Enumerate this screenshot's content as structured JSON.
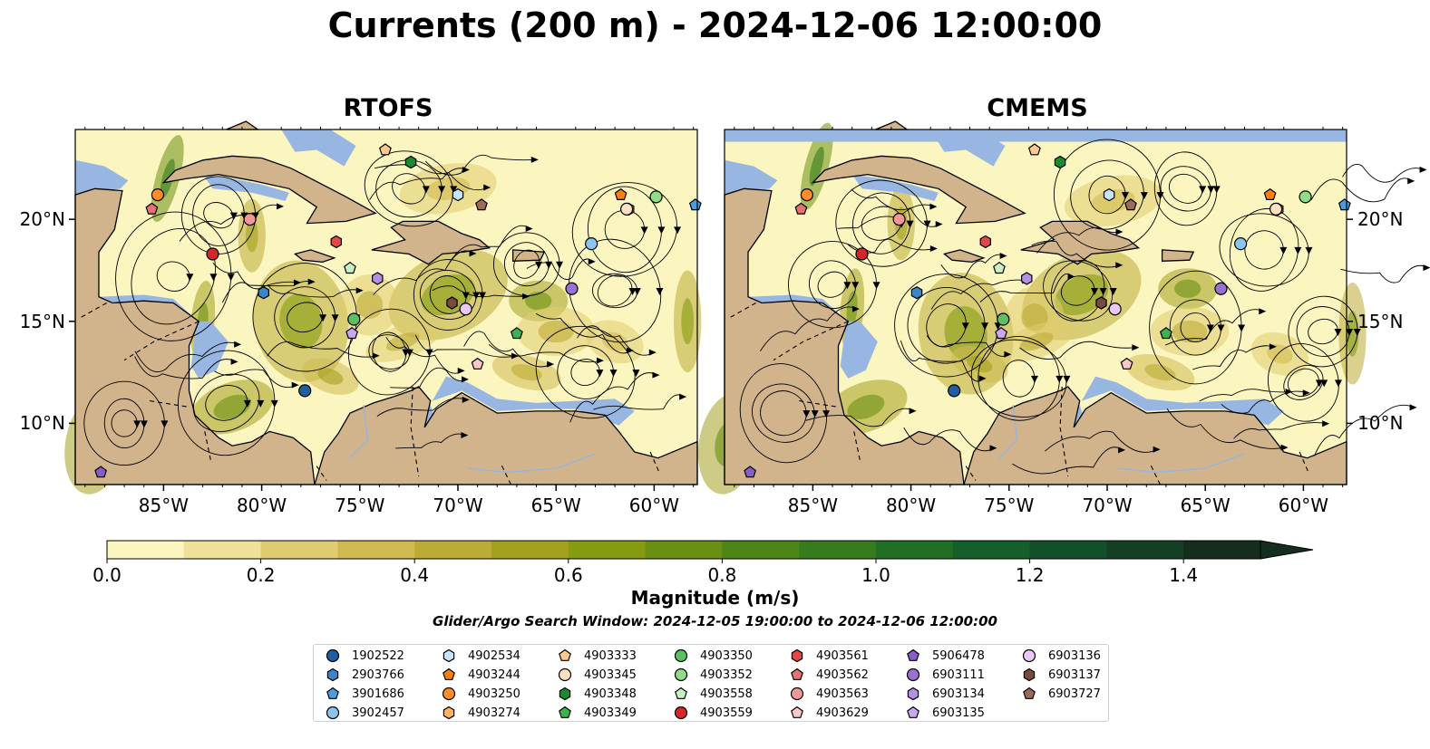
{
  "title": "Currents (200 m) - 2024-12-06 12:00:00",
  "panels": [
    {
      "title": "RTOFS",
      "variant": 0
    },
    {
      "title": "CMEMS",
      "variant": 1
    }
  ],
  "map": {
    "lon_range": [
      -89.5,
      -57.8
    ],
    "lat_range": [
      7.0,
      24.4
    ],
    "lon_ticks": [
      "85°W",
      "80°W",
      "75°W",
      "70°W",
      "65°W",
      "60°W"
    ],
    "lon_tick_values": [
      -85,
      -80,
      -75,
      -70,
      -65,
      -60
    ],
    "lat_ticks": [
      "20°N",
      "15°N",
      "10°N"
    ],
    "lat_tick_values": [
      20,
      15,
      10
    ],
    "colors": {
      "ocean": "#fbf5c0",
      "land": "#d2b48c",
      "outside_domain": "#97b6e1",
      "streamline": "#000000"
    }
  },
  "colorbar": {
    "label": "Magnitude (m/s)",
    "range": [
      0.0,
      1.5
    ],
    "extend": "max",
    "ticks": [
      "0.0",
      "0.2",
      "0.4",
      "0.6",
      "0.8",
      "1.0",
      "1.2",
      "1.4"
    ],
    "tick_values": [
      0.0,
      0.2,
      0.4,
      0.6,
      0.8,
      1.0,
      1.2,
      1.4
    ],
    "colors": [
      "#fbf5c0",
      "#efe09a",
      "#e0cc70",
      "#d0ba50",
      "#bcab35",
      "#a4a020",
      "#869b10",
      "#6a9012",
      "#4e8616",
      "#367c1c",
      "#226e24",
      "#165e2a",
      "#12502a",
      "#143f24",
      "#142d1c"
    ]
  },
  "search_window": "Glider/Argo Search Window: 2024-12-05 19:00:00 to 2024-12-06 12:00:00",
  "floats": [
    {
      "id": "1902522",
      "color": "#1f5fa0",
      "marker": "circle",
      "lon": -77.8,
      "lat": 11.6,
      "lon2": -77.8,
      "lat2": 11.6
    },
    {
      "id": "2903766",
      "color": "#3a86c8",
      "marker": "hexagon",
      "lon": -79.9,
      "lat": 16.4,
      "lon2": -79.7,
      "lat2": 16.4
    },
    {
      "id": "3901686",
      "color": "#4a9ee0",
      "marker": "pentagon",
      "lon": -57.9,
      "lat": 20.7,
      "lon2": -57.9,
      "lat2": 20.7
    },
    {
      "id": "3902457",
      "color": "#8cc4f0",
      "marker": "circle",
      "lon": -63.2,
      "lat": 18.8,
      "lon2": -63.2,
      "lat2": 18.8
    },
    {
      "id": "4902534",
      "color": "#c8e4fa",
      "marker": "hexagon",
      "lon": -70.0,
      "lat": 21.2,
      "lon2": -69.9,
      "lat2": 21.2
    },
    {
      "id": "4903244",
      "color": "#ff7f0e",
      "marker": "pentagon",
      "lon": -61.7,
      "lat": 21.2,
      "lon2": -61.7,
      "lat2": 21.2
    },
    {
      "id": "4903250",
      "color": "#ff8c2a",
      "marker": "circle",
      "lon": -85.3,
      "lat": 21.2,
      "lon2": -85.3,
      "lat2": 21.2
    },
    {
      "id": "4903274",
      "color": "#ffb060",
      "marker": "hexagon",
      "lon": -61.3,
      "lat": 20.5,
      "lon2": -61.3,
      "lat2": 20.5
    },
    {
      "id": "4903333",
      "color": "#ffc890",
      "marker": "pentagon",
      "lon": -73.7,
      "lat": 23.4,
      "lon2": -73.7,
      "lat2": 23.4
    },
    {
      "id": "4903345",
      "color": "#ffe0c0",
      "marker": "circle",
      "lon": -61.4,
      "lat": 20.5,
      "lon2": -61.4,
      "lat2": 20.5
    },
    {
      "id": "4903348",
      "color": "#1a8a2e",
      "marker": "hexagon",
      "lon": -72.4,
      "lat": 22.8,
      "lon2": -72.4,
      "lat2": 22.8
    },
    {
      "id": "4903349",
      "color": "#3cb44b",
      "marker": "pentagon",
      "lon": -67.0,
      "lat": 14.4,
      "lon2": -67.0,
      "lat2": 14.4
    },
    {
      "id": "4903350",
      "color": "#5cc060",
      "marker": "circle",
      "lon": -75.3,
      "lat": 15.1,
      "lon2": -75.3,
      "lat2": 15.1
    },
    {
      "id": "4903352",
      "color": "#90dc88",
      "marker": "circle",
      "lon": -59.9,
      "lat": 21.1,
      "lon2": -59.9,
      "lat2": 21.1
    },
    {
      "id": "4903558",
      "color": "#c8f0c0",
      "marker": "pentagon",
      "lon": -75.5,
      "lat": 17.6,
      "lon2": -75.5,
      "lat2": 17.6
    },
    {
      "id": "4903559",
      "color": "#d62728",
      "marker": "circle",
      "lon": -82.5,
      "lat": 18.3,
      "lon2": -82.5,
      "lat2": 18.3
    },
    {
      "id": "4903561",
      "color": "#e04848",
      "marker": "hexagon",
      "lon": -76.2,
      "lat": 18.9,
      "lon2": -76.2,
      "lat2": 18.9
    },
    {
      "id": "4903562",
      "color": "#e87070",
      "marker": "pentagon",
      "lon": -85.6,
      "lat": 20.5,
      "lon2": -85.6,
      "lat2": 20.5
    },
    {
      "id": "4903563",
      "color": "#f09898",
      "marker": "circle",
      "lon": -80.6,
      "lat": 20.0,
      "lon2": -80.6,
      "lat2": 20.0
    },
    {
      "id": "4903629",
      "color": "#f8c8c8",
      "marker": "pentagon",
      "lon": -69.0,
      "lat": 12.9,
      "lon2": -69.0,
      "lat2": 12.9
    },
    {
      "id": "5906478",
      "color": "#8a5cc8",
      "marker": "pentagon",
      "lon": -88.2,
      "lat": 7.6,
      "lon2": -88.2,
      "lat2": 7.6
    },
    {
      "id": "6903111",
      "color": "#9a70d0",
      "marker": "circle",
      "lon": -64.2,
      "lat": 16.6,
      "lon2": -64.2,
      "lat2": 16.6
    },
    {
      "id": "6903134",
      "color": "#b490e0",
      "marker": "hexagon",
      "lon": -74.1,
      "lat": 17.1,
      "lon2": -74.1,
      "lat2": 17.1
    },
    {
      "id": "6903135",
      "color": "#caa8f0",
      "marker": "pentagon",
      "lon": -75.4,
      "lat": 14.4,
      "lon2": -75.4,
      "lat2": 14.4
    },
    {
      "id": "6903136",
      "color": "#e8c8f8",
      "marker": "circle",
      "lon": -69.6,
      "lat": 15.6,
      "lon2": -69.6,
      "lat2": 15.6
    },
    {
      "id": "6903137",
      "color": "#7a4a3a",
      "marker": "hexagon",
      "lon": -70.3,
      "lat": 15.9,
      "lon2": -70.3,
      "lat2": 15.9
    },
    {
      "id": "6903727",
      "color": "#9a6a5a",
      "marker": "pentagon",
      "lon": -68.8,
      "lat": 20.7,
      "lon2": -68.8,
      "lat2": 20.7
    }
  ]
}
